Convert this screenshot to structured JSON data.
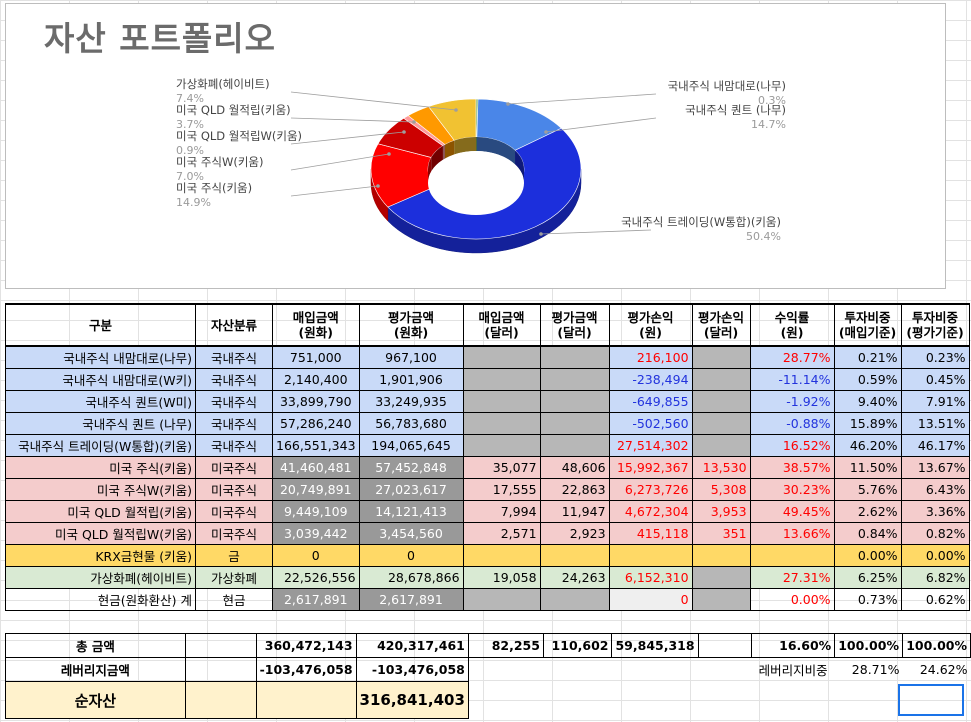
{
  "chart": {
    "title": "자산 포트폴리오",
    "labels": [
      {
        "name": "국내주식 내맘대로(나무)",
        "pct": "0.3%"
      },
      {
        "name": "국내주식 퀀트 (나무)",
        "pct": "14.7%"
      },
      {
        "name": "국내주식 트레이딩(W통합)(키움)",
        "pct": "50.4%"
      },
      {
        "name": "미국 주식(키움)",
        "pct": "14.9%"
      },
      {
        "name": "미국 주식W(키움)",
        "pct": "7.0%"
      },
      {
        "name": "미국 QLD 월적립W(키움)",
        "pct": "0.9%"
      },
      {
        "name": "미국 QLD 월적립(키움)",
        "pct": "3.7%"
      },
      {
        "name": "가상화폐(헤이비트)",
        "pct": "7.4%"
      }
    ]
  },
  "chart_data": {
    "type": "pie",
    "title": "자산 포트폴리오",
    "categories": [
      "국내주식 내맘대로(나무)",
      "국내주식 퀀트 (나무)",
      "국내주식 트레이딩(W통합)(키움)",
      "미국 주식(키움)",
      "미국 주식W(키움)",
      "미국 QLD 월적립W(키움)",
      "미국 QLD 월적립(키움)",
      "가상화폐(헤이비트)"
    ],
    "values": [
      0.3,
      14.7,
      50.4,
      14.9,
      7.0,
      0.9,
      3.7,
      7.4
    ],
    "colors": [
      "#6aa84f",
      "#4a86e8",
      "#1c2fdc",
      "#ff0000",
      "#cc0000",
      "#ff9999",
      "#ff9900",
      "#f1c232"
    ],
    "style": "doughnut-3d"
  },
  "table": {
    "headers": [
      "구분",
      "자산분류",
      "매입금액\n(원화)",
      "평가금액\n(원화)",
      "매입금액\n(달러)",
      "평가금액\n(달러)",
      "평가손익\n(원)",
      "평가손익\n(달러)",
      "수익률\n(원)",
      "투자비중\n(매입기준)",
      "투자비중\n(평가기준)"
    ],
    "rows": [
      {
        "name": "국내주식 내맘대로(나무)",
        "cls": "국내주식",
        "buy_krw": "751,000",
        "eval_krw": "967,100",
        "buy_usd": "",
        "eval_usd": "",
        "pnl_krw": "216,100",
        "pnl_usd": "",
        "ret": "28.77%",
        "w_buy": "0.21%",
        "w_eval": "0.23%"
      },
      {
        "name": "국내주식 내맘대로(W키)",
        "cls": "국내주식",
        "buy_krw": "2,140,400",
        "eval_krw": "1,901,906",
        "buy_usd": "",
        "eval_usd": "",
        "pnl_krw": "-238,494",
        "pnl_usd": "",
        "ret": "-11.14%",
        "w_buy": "0.59%",
        "w_eval": "0.45%"
      },
      {
        "name": "국내주식 퀀트(W미)",
        "cls": "국내주식",
        "buy_krw": "33,899,790",
        "eval_krw": "33,249,935",
        "buy_usd": "",
        "eval_usd": "",
        "pnl_krw": "-649,855",
        "pnl_usd": "",
        "ret": "-1.92%",
        "w_buy": "9.40%",
        "w_eval": "7.91%"
      },
      {
        "name": "국내주식 퀀트 (나무)",
        "cls": "국내주식",
        "buy_krw": "57,286,240",
        "eval_krw": "56,783,680",
        "buy_usd": "",
        "eval_usd": "",
        "pnl_krw": "-502,560",
        "pnl_usd": "",
        "ret": "-0.88%",
        "w_buy": "15.89%",
        "w_eval": "13.51%"
      },
      {
        "name": "국내주식 트레이딩(W통합)(키움)",
        "cls": "국내주식",
        "buy_krw": "166,551,343",
        "eval_krw": "194,065,645",
        "buy_usd": "",
        "eval_usd": "",
        "pnl_krw": "27,514,302",
        "pnl_usd": "",
        "ret": "16.52%",
        "w_buy": "46.20%",
        "w_eval": "46.17%"
      },
      {
        "name": "미국 주식(키움)",
        "cls": "미국주식",
        "buy_krw": "41,460,481",
        "eval_krw": "57,452,848",
        "buy_usd": "35,077",
        "eval_usd": "48,606",
        "pnl_krw": "15,992,367",
        "pnl_usd": "13,530",
        "ret": "38.57%",
        "w_buy": "11.50%",
        "w_eval": "13.67%"
      },
      {
        "name": "미국 주식W(키움)",
        "cls": "미국주식",
        "buy_krw": "20,749,891",
        "eval_krw": "27,023,617",
        "buy_usd": "17,555",
        "eval_usd": "22,863",
        "pnl_krw": "6,273,726",
        "pnl_usd": "5,308",
        "ret": "30.23%",
        "w_buy": "5.76%",
        "w_eval": "6.43%"
      },
      {
        "name": "미국 QLD 월적립(키움)",
        "cls": "미국주식",
        "buy_krw": "9,449,109",
        "eval_krw": "14,121,413",
        "buy_usd": "7,994",
        "eval_usd": "11,947",
        "pnl_krw": "4,672,304",
        "pnl_usd": "3,953",
        "ret": "49.45%",
        "w_buy": "2.62%",
        "w_eval": "3.36%"
      },
      {
        "name": "미국 QLD 월적립W(키움)",
        "cls": "미국주식",
        "buy_krw": "3,039,442",
        "eval_krw": "3,454,560",
        "buy_usd": "2,571",
        "eval_usd": "2,923",
        "pnl_krw": "415,118",
        "pnl_usd": "351",
        "ret": "13.66%",
        "w_buy": "0.84%",
        "w_eval": "0.82%"
      },
      {
        "name": "KRX금현물 (키움)",
        "cls": "금",
        "buy_krw": "0",
        "eval_krw": "0",
        "buy_usd": "",
        "eval_usd": "",
        "pnl_krw": "",
        "pnl_usd": "",
        "ret": "",
        "w_buy": "0.00%",
        "w_eval": "0.00%"
      },
      {
        "name": "가상화폐(헤이비트)",
        "cls": "가상화폐",
        "buy_krw": "22,526,556",
        "eval_krw": "28,678,866",
        "buy_usd": "19,058",
        "eval_usd": "24,263",
        "pnl_krw": "6,152,310",
        "pnl_usd": "",
        "ret": "27.31%",
        "w_buy": "6.25%",
        "w_eval": "6.82%"
      },
      {
        "name": "현금(원화환산) 계",
        "cls": "현금",
        "buy_krw": "2,617,891",
        "eval_krw": "2,617,891",
        "buy_usd": "",
        "eval_usd": "",
        "pnl_krw": "0",
        "pnl_usd": "",
        "ret": "0.00%",
        "w_buy": "0.73%",
        "w_eval": "0.62%"
      }
    ]
  },
  "totals": {
    "total_label": "총 금액",
    "total_buy_krw": "360,472,143",
    "total_eval_krw": "420,317,461",
    "total_buy_usd": "82,255",
    "total_eval_usd": "110,602",
    "total_pnl_krw": "59,845,318",
    "total_ret": "16.60%",
    "total_w_buy": "100.00%",
    "total_w_eval": "100.00%",
    "leverage_label": "레버리지금액",
    "leverage_buy_krw": "-103,476,058",
    "leverage_eval_krw": "-103,476,058",
    "leverage_ratio_label": "레버리지비중",
    "leverage_ratio_buy": "28.71%",
    "leverage_ratio_eval": "24.62%",
    "net_label": "순자산",
    "net_value": "316,841,403"
  }
}
